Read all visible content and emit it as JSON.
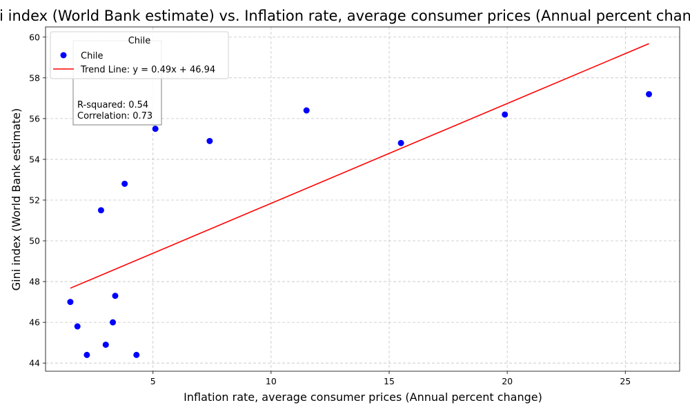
{
  "chart_data": {
    "type": "scatter",
    "title": "Gini index (World Bank estimate) vs. Inflation rate, average consumer prices (Annual percent change)",
    "xlabel": "Inflation rate, average consumer prices (Annual percent change)",
    "ylabel": "Gini index (World Bank estimate)",
    "xlim": [
      0.45,
      27.3
    ],
    "ylim": [
      43.6,
      60.5
    ],
    "xticks": [
      5,
      10,
      15,
      20,
      25
    ],
    "yticks": [
      44,
      46,
      48,
      50,
      52,
      54,
      56,
      58,
      60
    ],
    "grid": true,
    "legend": {
      "title": "Chile",
      "placement": "top-left",
      "entries": [
        "Chile",
        "Trend Line: y = 0.49x + 46.94"
      ]
    },
    "series": [
      {
        "name": "Chile",
        "color": "#0000ff",
        "points": [
          {
            "x": 1.5,
            "y": 47.0
          },
          {
            "x": 1.8,
            "y": 45.8
          },
          {
            "x": 2.2,
            "y": 44.4
          },
          {
            "x": 2.8,
            "y": 51.5
          },
          {
            "x": 3.0,
            "y": 44.9
          },
          {
            "x": 3.3,
            "y": 46.0
          },
          {
            "x": 3.4,
            "y": 47.3
          },
          {
            "x": 3.8,
            "y": 52.8
          },
          {
            "x": 4.3,
            "y": 44.4
          },
          {
            "x": 5.1,
            "y": 55.5
          },
          {
            "x": 7.4,
            "y": 54.9
          },
          {
            "x": 11.5,
            "y": 56.4
          },
          {
            "x": 15.5,
            "y": 54.8
          },
          {
            "x": 19.9,
            "y": 56.2
          },
          {
            "x": 26.0,
            "y": 57.2
          }
        ]
      }
    ],
    "trend_line": {
      "name": "Trend Line: y = 0.49x + 46.94",
      "color": "#ff0000",
      "slope": 0.49,
      "intercept": 46.94,
      "x_range": [
        1.5,
        26.0
      ]
    },
    "stats": {
      "r_squared": "R-squared: 0.54",
      "correlation": "Correlation: 0.73"
    }
  }
}
